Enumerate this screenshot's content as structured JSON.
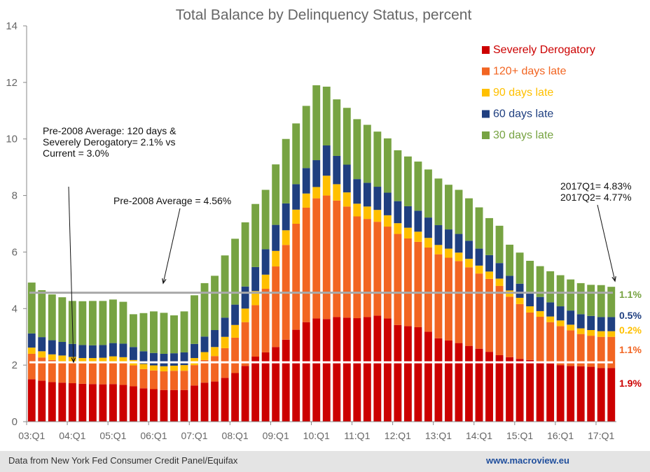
{
  "chart_data": {
    "type": "bar",
    "stacked": true,
    "title": "Total Balance by Delinquency Status, percent",
    "ylim": [
      0,
      14
    ],
    "yticks": [
      0,
      2,
      4,
      6,
      8,
      10,
      12,
      14
    ],
    "xtick_labels": [
      "03:Q1",
      "04:Q1",
      "05:Q1",
      "06:Q1",
      "07:Q1",
      "08:Q1",
      "09:Q1",
      "10:Q1",
      "11:Q1",
      "12:Q1",
      "13:Q1",
      "14:Q1",
      "15:Q1",
      "16:Q1",
      "17:Q1"
    ],
    "categories": [
      "2003Q1",
      "2003Q2",
      "2003Q3",
      "2003Q4",
      "2004Q1",
      "2004Q2",
      "2004Q3",
      "2004Q4",
      "2005Q1",
      "2005Q2",
      "2005Q3",
      "2005Q4",
      "2006Q1",
      "2006Q2",
      "2006Q3",
      "2006Q4",
      "2007Q1",
      "2007Q2",
      "2007Q3",
      "2007Q4",
      "2008Q1",
      "2008Q2",
      "2008Q3",
      "2008Q4",
      "2009Q1",
      "2009Q2",
      "2009Q3",
      "2009Q4",
      "2010Q1",
      "2010Q2",
      "2010Q3",
      "2010Q4",
      "2011Q1",
      "2011Q2",
      "2011Q3",
      "2011Q4",
      "2012Q1",
      "2012Q2",
      "2012Q3",
      "2012Q4",
      "2013Q1",
      "2013Q2",
      "2013Q3",
      "2013Q4",
      "2014Q1",
      "2014Q2",
      "2014Q3",
      "2014Q4",
      "2015Q1",
      "2015Q2",
      "2015Q3",
      "2015Q4",
      "2016Q1",
      "2016Q2",
      "2016Q3",
      "2016Q4",
      "2017Q1",
      "2017Q2"
    ],
    "series": [
      {
        "name": "Severely Derogatory",
        "color": "#cc0000",
        "values": [
          1.5,
          1.45,
          1.4,
          1.38,
          1.36,
          1.34,
          1.33,
          1.32,
          1.33,
          1.3,
          1.25,
          1.18,
          1.15,
          1.12,
          1.12,
          1.12,
          1.28,
          1.38,
          1.42,
          1.55,
          1.72,
          1.97,
          2.3,
          2.45,
          2.64,
          2.9,
          3.25,
          3.52,
          3.65,
          3.63,
          3.7,
          3.68,
          3.66,
          3.7,
          3.75,
          3.65,
          3.42,
          3.38,
          3.34,
          3.18,
          2.95,
          2.87,
          2.78,
          2.68,
          2.58,
          2.47,
          2.35,
          2.28,
          2.22,
          2.18,
          2.13,
          2.06,
          2.0,
          1.97,
          1.96,
          1.94,
          1.9,
          1.9
        ]
      },
      {
        "name": "120+ days late",
        "color": "#f26522",
        "values": [
          0.9,
          0.82,
          0.78,
          0.76,
          0.74,
          0.72,
          0.73,
          0.75,
          0.78,
          0.78,
          0.74,
          0.68,
          0.66,
          0.66,
          0.68,
          0.68,
          0.72,
          0.8,
          0.9,
          1.05,
          1.25,
          1.55,
          1.82,
          2.25,
          2.85,
          3.35,
          3.75,
          4.05,
          4.25,
          4.37,
          4.12,
          3.93,
          3.6,
          3.47,
          3.32,
          3.25,
          3.22,
          3.1,
          3.02,
          2.98,
          2.97,
          2.93,
          2.9,
          2.78,
          2.66,
          2.58,
          2.45,
          2.14,
          1.94,
          1.68,
          1.58,
          1.46,
          1.38,
          1.26,
          1.14,
          1.1,
          1.1,
          1.1
        ]
      },
      {
        "name": "90 days late",
        "color": "#ffc000",
        "values": [
          0.22,
          0.22,
          0.2,
          0.2,
          0.19,
          0.19,
          0.19,
          0.19,
          0.2,
          0.2,
          0.19,
          0.18,
          0.18,
          0.18,
          0.18,
          0.2,
          0.25,
          0.28,
          0.32,
          0.4,
          0.45,
          0.48,
          0.5,
          0.5,
          0.55,
          0.52,
          0.5,
          0.5,
          0.4,
          0.7,
          0.58,
          0.5,
          0.45,
          0.44,
          0.42,
          0.4,
          0.38,
          0.38,
          0.36,
          0.34,
          0.33,
          0.32,
          0.3,
          0.3,
          0.28,
          0.26,
          0.26,
          0.22,
          0.22,
          0.22,
          0.2,
          0.2,
          0.2,
          0.2,
          0.2,
          0.2,
          0.2,
          0.2
        ]
      },
      {
        "name": "60 days late",
        "color": "#1f3f80",
        "values": [
          0.5,
          0.5,
          0.5,
          0.48,
          0.46,
          0.46,
          0.45,
          0.45,
          0.47,
          0.48,
          0.46,
          0.45,
          0.44,
          0.44,
          0.44,
          0.45,
          0.5,
          0.55,
          0.6,
          0.68,
          0.72,
          0.78,
          0.85,
          0.9,
          0.92,
          0.95,
          0.9,
          0.9,
          0.95,
          1.07,
          1.0,
          0.98,
          0.87,
          0.84,
          0.82,
          0.8,
          0.78,
          0.76,
          0.74,
          0.72,
          0.7,
          0.68,
          0.66,
          0.64,
          0.6,
          0.58,
          0.55,
          0.52,
          0.5,
          0.5,
          0.5,
          0.5,
          0.5,
          0.5,
          0.5,
          0.5,
          0.5,
          0.5
        ]
      },
      {
        "name": "30 days late",
        "color": "#77a342",
        "values": [
          1.8,
          1.66,
          1.62,
          1.58,
          1.52,
          1.55,
          1.57,
          1.56,
          1.54,
          1.48,
          1.16,
          1.35,
          1.47,
          1.45,
          1.34,
          1.45,
          1.72,
          1.89,
          1.92,
          2.2,
          2.33,
          2.27,
          2.23,
          2.1,
          2.14,
          2.28,
          2.15,
          2.2,
          2.65,
          2.08,
          2.0,
          2.01,
          2.12,
          2.05,
          1.95,
          1.92,
          1.8,
          1.76,
          1.74,
          1.7,
          1.65,
          1.58,
          1.56,
          1.5,
          1.46,
          1.31,
          1.32,
          1.1,
          1.1,
          1.11,
          1.09,
          1.1,
          1.1,
          1.1,
          1.1,
          1.1,
          1.13,
          1.07
        ]
      }
    ],
    "ref_lines": [
      {
        "value": 4.56,
        "color": "#a9a9a9"
      },
      {
        "value": 2.1,
        "color": "#ffffff"
      }
    ],
    "legend": [
      "Severely Derogatory",
      "120+ days late",
      "90 days late",
      "60 days late",
      "30 days late"
    ],
    "legend_position": "top-right",
    "annotations": {
      "pre2008_120": [
        "Pre-2008 Average: 120 days &",
        "Severely Derogatory= 2.1% vs",
        "Current = 3.0%"
      ],
      "pre2008_total": "Pre-2008 Average = 4.56%",
      "current": [
        "2017Q1= 4.83%",
        "2017Q2= 4.77%"
      ]
    },
    "end_labels": [
      {
        "text": "1.1%",
        "color": "#77a342"
      },
      {
        "text": "0.5%",
        "color": "#1f3f80"
      },
      {
        "text": "0.2%",
        "color": "#ffc000"
      },
      {
        "text": "1.1%",
        "color": "#f26522"
      },
      {
        "text": "1.9%",
        "color": "#cc0000"
      }
    ]
  },
  "footer": {
    "source": "Data from New York Fed Consumer Credit Panel/Equifax",
    "website": "www.macroview.eu"
  }
}
